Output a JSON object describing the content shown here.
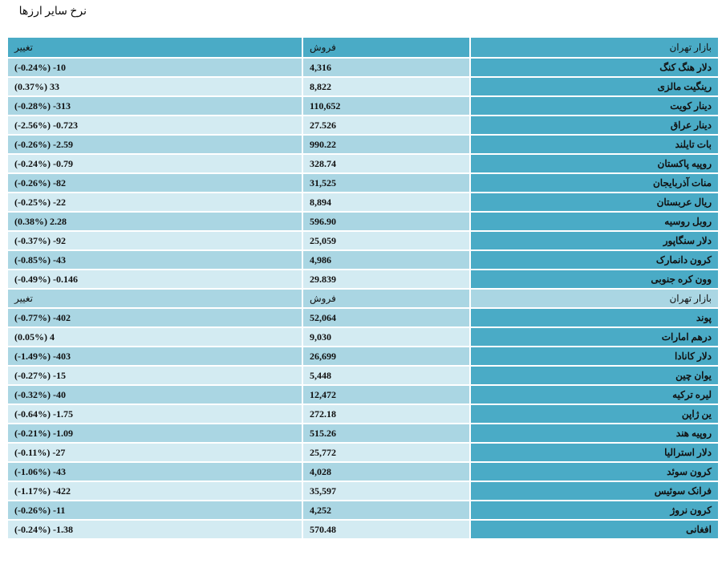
{
  "title": "نرخ سایر ارزها",
  "header": {
    "market": "بازار تهران",
    "sell": "فروش",
    "change": "تغییر"
  },
  "section1": [
    {
      "name": "دلار هنگ کنگ",
      "sell": "4,316",
      "change": "(-0.24%) -10"
    },
    {
      "name": "رینگیت مالزی",
      "sell": "8,822",
      "change": "(0.37%) 33"
    },
    {
      "name": "دینار کویت",
      "sell": "110,652",
      "change": "(-0.28%) -313"
    },
    {
      "name": "دینار عراق",
      "sell": "27.526",
      "change": "(-2.56%) -0.723"
    },
    {
      "name": "بات تایلند",
      "sell": "990.22",
      "change": "(-0.26%) -2.59"
    },
    {
      "name": "روپیه پاکستان",
      "sell": "328.74",
      "change": "(-0.24%) -0.79"
    },
    {
      "name": "منات آذربایجان",
      "sell": "31,525",
      "change": "(-0.26%) -82"
    },
    {
      "name": "ریال عربستان",
      "sell": "8,894",
      "change": "(-0.25%) -22"
    },
    {
      "name": "روبل روسیه",
      "sell": "596.90",
      "change": "(0.38%) 2.28"
    },
    {
      "name": "دلار سنگاپور",
      "sell": "25,059",
      "change": "(-0.37%) -92"
    },
    {
      "name": "کرون دانمارک",
      "sell": "4,986",
      "change": "(-0.85%) -43"
    },
    {
      "name": "وون کره جنوبی",
      "sell": "29.839",
      "change": "(-0.49%) -0.146"
    }
  ],
  "subheader": {
    "market": "بازار تهران",
    "sell": "فروش",
    "change": "تغییر"
  },
  "section2": [
    {
      "name": "پوند",
      "sell": "52,064",
      "change": "(-0.77%) -402"
    },
    {
      "name": "درهم امارات",
      "sell": "9,030",
      "change": "(0.05%) 4"
    },
    {
      "name": "دلار کانادا",
      "sell": "26,699",
      "change": "(-1.49%) -403"
    },
    {
      "name": "یوان چین",
      "sell": "5,448",
      "change": "(-0.27%) -15"
    },
    {
      "name": "لیره ترکیه",
      "sell": "12,472",
      "change": "(-0.32%) -40"
    },
    {
      "name": "ین ژاپن",
      "sell": "272.18",
      "change": "(-0.64%) -1.75"
    },
    {
      "name": "روپیه هند",
      "sell": "515.26",
      "change": "(-0.21%) -1.09"
    },
    {
      "name": "دلار استرالیا",
      "sell": "25,772",
      "change": "(-0.11%) -27"
    },
    {
      "name": "کرون سوئد",
      "sell": "4,028",
      "change": "(-1.06%) -43"
    },
    {
      "name": "فرانک سوئیس",
      "sell": "35,597",
      "change": "(-1.17%) -422"
    },
    {
      "name": "کرون نروژ",
      "sell": "4,252",
      "change": "(-0.26%) -11"
    },
    {
      "name": "افغانی",
      "sell": "570.48",
      "change": "(-0.24%) -1.38"
    }
  ]
}
